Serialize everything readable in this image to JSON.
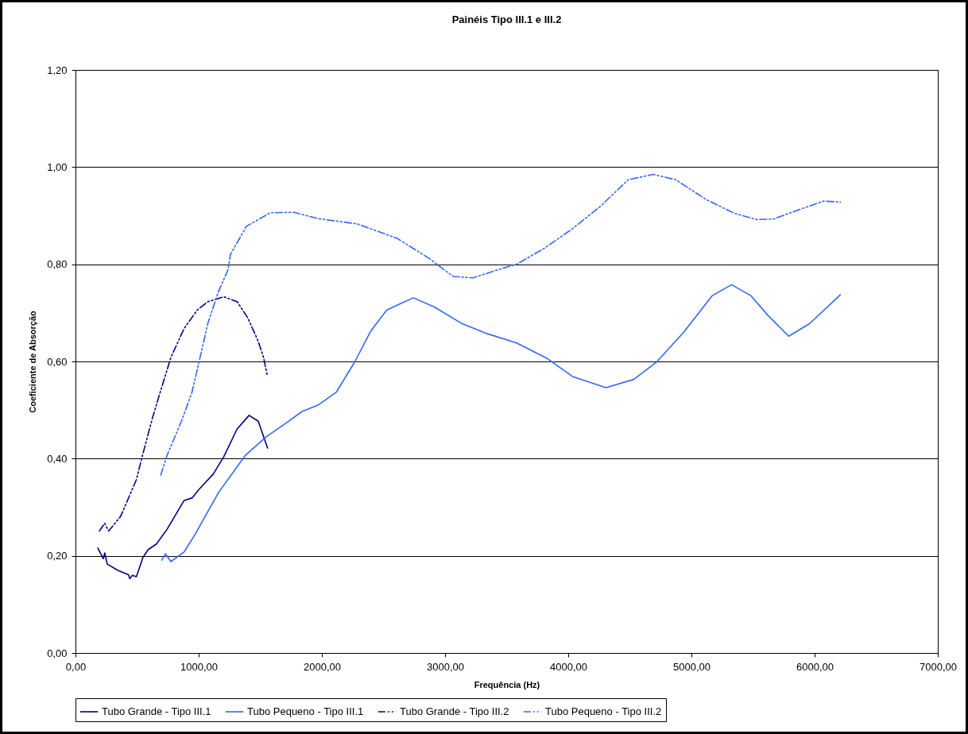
{
  "chart_data": {
    "type": "line",
    "title": "Painéis Tipo III.1 e III.2",
    "xlabel": "Frequência (Hz)",
    "ylabel": "Coeficiente de Absorção",
    "xlim": [
      0,
      7000
    ],
    "xticks": [
      {
        "value": 0,
        "label": "0,00"
      },
      {
        "value": 1000,
        "label": "1000,00"
      },
      {
        "value": 2000,
        "label": "2000,00"
      },
      {
        "value": 3000,
        "label": "3000,00"
      },
      {
        "value": 4000,
        "label": "4000,00"
      },
      {
        "value": 5000,
        "label": "5000,00"
      },
      {
        "value": 6000,
        "label": "6000,00"
      },
      {
        "value": 7000,
        "label": "7000,00"
      }
    ],
    "ylim": [
      0,
      1.2
    ],
    "yticks": [
      {
        "value": 0,
        "label": "0,00"
      },
      {
        "value": 0.2,
        "label": "0,20"
      },
      {
        "value": 0.4,
        "label": "0,40"
      },
      {
        "value": 0.6,
        "label": "0,60"
      },
      {
        "value": 0.8,
        "label": "0,80"
      },
      {
        "value": 1,
        "label": "1,00"
      },
      {
        "value": 1.2,
        "label": "1,20"
      }
    ],
    "grid": "y",
    "legend": "bottom",
    "marker": "none",
    "series": [
      {
        "name": "Tubo Grande - Tipo III.1",
        "color": "#000080",
        "line_style": "solid",
        "x": [
          181,
          226,
          237,
          258,
          344,
          430,
          441,
          462,
          494,
          548,
          591,
          656,
          742,
          882,
          946,
          1000,
          1118,
          1204,
          1312,
          1409,
          1484,
          1527,
          1559
        ],
        "values": [
          0.216,
          0.194,
          0.206,
          0.183,
          0.17,
          0.161,
          0.153,
          0.16,
          0.157,
          0.197,
          0.213,
          0.224,
          0.254,
          0.314,
          0.319,
          0.336,
          0.368,
          0.404,
          0.461,
          0.489,
          0.477,
          0.445,
          0.422
        ]
      },
      {
        "name": "Tubo Pequeno - Tipo III.1",
        "color": "#3366ff",
        "line_style": "solid",
        "x": [
          699,
          731,
          774,
          882,
          968,
          1161,
          1376,
          1548,
          1720,
          1839,
          1968,
          2118,
          2269,
          2398,
          2527,
          2742,
          2914,
          3129,
          3344,
          3581,
          3830,
          4034,
          4306,
          4532,
          4714,
          4940,
          5167,
          5326,
          5484,
          5620,
          5790,
          5960,
          6209
        ],
        "values": [
          0.191,
          0.204,
          0.188,
          0.208,
          0.243,
          0.33,
          0.406,
          0.445,
          0.475,
          0.497,
          0.51,
          0.537,
          0.6,
          0.663,
          0.706,
          0.731,
          0.712,
          0.679,
          0.657,
          0.638,
          0.606,
          0.569,
          0.546,
          0.563,
          0.598,
          0.661,
          0.735,
          0.758,
          0.735,
          0.695,
          0.652,
          0.678,
          0.737
        ]
      },
      {
        "name": "Tubo Grande - Tipo III.2",
        "color": "#000080",
        "line_style": "dashed",
        "x": [
          194,
          237,
          269,
          366,
          495,
          538,
          624,
          688,
          774,
          882,
          989,
          1075,
          1204,
          1312,
          1398,
          1484,
          1527,
          1555
        ],
        "values": [
          0.251,
          0.267,
          0.251,
          0.281,
          0.357,
          0.401,
          0.483,
          0.537,
          0.608,
          0.668,
          0.706,
          0.723,
          0.733,
          0.723,
          0.69,
          0.641,
          0.608,
          0.573
        ]
      },
      {
        "name": "Tubo Pequeno - Tipo III.2",
        "color": "#3366ff",
        "line_style": "dashed",
        "x": [
          692,
          742,
          860,
          946,
          1011,
          1075,
          1161,
          1237,
          1258,
          1387,
          1581,
          1774,
          1968,
          2290,
          2613,
          2871,
          3065,
          3226,
          3419,
          3581,
          3807,
          4034,
          4260,
          4487,
          4691,
          4872,
          5121,
          5348,
          5530,
          5665,
          5892,
          6074,
          6209
        ],
        "values": [
          0.366,
          0.406,
          0.477,
          0.537,
          0.608,
          0.679,
          0.744,
          0.788,
          0.82,
          0.878,
          0.906,
          0.907,
          0.894,
          0.883,
          0.853,
          0.812,
          0.775,
          0.772,
          0.788,
          0.8,
          0.833,
          0.873,
          0.919,
          0.974,
          0.985,
          0.974,
          0.933,
          0.905,
          0.892,
          0.893,
          0.914,
          0.93,
          0.928
        ]
      }
    ]
  }
}
